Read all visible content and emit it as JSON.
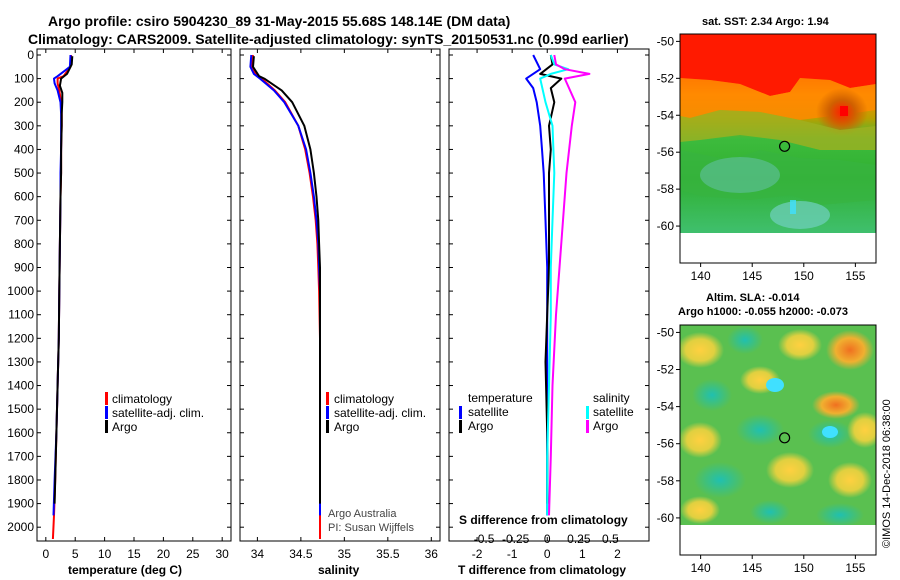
{
  "title": {
    "line1": "Argo profile: csiro 5904230_89 31-May-2015 55.68S 148.14E (DM data)",
    "line2": "Climatology: CARS2009. Satellite-adjusted climatology: synTS_20150531.nc (0.99d earlier)"
  },
  "colors": {
    "climatology": "#ff0000",
    "satellite": "#0000ff",
    "argo": "#000000",
    "s_satellite": "#00ffff",
    "s_argo": "#ff00ff"
  },
  "depth_axis": {
    "min": 0,
    "max": 2050,
    "ticks": [
      0,
      100,
      200,
      300,
      400,
      500,
      600,
      700,
      800,
      900,
      1000,
      1100,
      1200,
      1300,
      1400,
      1500,
      1600,
      1700,
      1800,
      1900,
      2000
    ]
  },
  "chart_data": [
    {
      "type": "line",
      "xlabel": "temperature (deg C)",
      "ylabel": "",
      "xlim": [
        -1.5,
        31.5
      ],
      "xticks": [
        "0",
        "5",
        "10",
        "15",
        "20",
        "25",
        "30"
      ],
      "xtick_values": [
        0,
        5,
        10,
        15,
        20,
        25,
        30
      ],
      "legend": {
        "position": "bottom-right",
        "items": [
          "climatology",
          "satellite-adj. clim.",
          "Argo"
        ]
      },
      "series": [
        {
          "name": "climatology",
          "color": "#ff0000",
          "depth": [
            0,
            50,
            90,
            100,
            120,
            150,
            200,
            250,
            300,
            400,
            500,
            600,
            800,
            1000,
            1200,
            1400,
            1600,
            1800,
            1950,
            2050
          ],
          "x": [
            4.3,
            4.2,
            3.0,
            2.0,
            2.0,
            2.3,
            2.6,
            2.7,
            2.7,
            2.6,
            2.6,
            2.5,
            2.4,
            2.3,
            2.2,
            2.0,
            1.8,
            1.6,
            1.4,
            1.2
          ]
        },
        {
          "name": "satellite-adj. clim.",
          "color": "#0000ff",
          "depth": [
            0,
            50,
            90,
            100,
            120,
            150,
            200,
            250,
            300,
            400,
            500,
            600,
            800,
            1000,
            1200,
            1400,
            1600,
            1800,
            1950
          ],
          "x": [
            4.2,
            4.1,
            2.0,
            1.4,
            1.5,
            2.0,
            2.5,
            2.6,
            2.6,
            2.6,
            2.5,
            2.5,
            2.4,
            2.3,
            2.2,
            2.0,
            1.8,
            1.5,
            1.3
          ]
        },
        {
          "name": "Argo",
          "color": "#000000",
          "depth": [
            5,
            40,
            80,
            100,
            130,
            160,
            200,
            250,
            300,
            400,
            500,
            600,
            800,
            1000,
            1200,
            1400,
            1600,
            1800,
            1900
          ],
          "x": [
            4.5,
            4.4,
            3.6,
            2.6,
            2.4,
            2.8,
            2.8,
            2.7,
            2.7,
            2.6,
            2.6,
            2.5,
            2.4,
            2.3,
            2.2,
            2.0,
            1.8,
            1.6,
            1.5
          ]
        }
      ]
    },
    {
      "type": "line",
      "xlabel": "salinity",
      "ylabel": "",
      "xlim": [
        33.8,
        36.1
      ],
      "xticks": [
        "34",
        "34.5",
        "35",
        "35.5",
        "36"
      ],
      "xtick_values": [
        34,
        34.5,
        35,
        35.5,
        36
      ],
      "legend": {
        "position": "bottom-right",
        "items": [
          "climatology",
          "satellite-adj. clim.",
          "Argo"
        ]
      },
      "credit": [
        "Argo Australia",
        "PI: Susan Wijffels"
      ],
      "series": [
        {
          "name": "climatology",
          "color": "#ff0000",
          "depth": [
            0,
            50,
            80,
            100,
            150,
            200,
            300,
            400,
            500,
            600,
            700,
            800,
            900,
            1000,
            1200,
            1500,
            1800,
            2050
          ],
          "x": [
            33.95,
            33.93,
            33.98,
            34.05,
            34.2,
            34.32,
            34.47,
            34.55,
            34.6,
            34.64,
            34.67,
            34.69,
            34.7,
            34.71,
            34.72,
            34.72,
            34.72,
            34.72
          ]
        },
        {
          "name": "satellite-adj. clim.",
          "color": "#0000ff",
          "depth": [
            0,
            50,
            80,
            100,
            150,
            200,
            300,
            400,
            500,
            600,
            700,
            800,
            900,
            1000,
            1200,
            1500,
            1800,
            1950
          ],
          "x": [
            33.93,
            33.92,
            33.96,
            34.03,
            34.19,
            34.31,
            34.47,
            34.56,
            34.61,
            34.65,
            34.68,
            34.7,
            34.71,
            34.72,
            34.72,
            34.72,
            34.72,
            34.72
          ]
        },
        {
          "name": "Argo",
          "color": "#000000",
          "depth": [
            5,
            50,
            90,
            100,
            150,
            200,
            300,
            400,
            500,
            600,
            700,
            800,
            900,
            1000,
            1200,
            1500,
            1800,
            1900
          ],
          "x": [
            33.96,
            33.95,
            34.02,
            34.08,
            34.28,
            34.4,
            34.54,
            34.61,
            34.65,
            34.68,
            34.7,
            34.71,
            34.72,
            34.72,
            34.72,
            34.72,
            34.72,
            34.72
          ]
        }
      ]
    },
    {
      "type": "line",
      "xlabel": "T difference from climatology",
      "xlabel2": "S difference from climatology",
      "ylabel": "",
      "xlim": [
        -2.8,
        2.9
      ],
      "xticks": [
        "-2",
        "-1",
        "0",
        "1",
        "2"
      ],
      "xtick_values": [
        -2,
        -1,
        0,
        1,
        2
      ],
      "xticks2": [
        "-0.5",
        "-0.25",
        "0",
        "0.25",
        "0.5"
      ],
      "xtick2_positions": [
        -1.8,
        -0.9,
        0,
        0.9,
        1.8
      ],
      "legend": {
        "position": "bottom",
        "temperature_header": "temperature",
        "salinity_header": "salinity",
        "items_t": [
          "satellite",
          "Argo"
        ],
        "items_s": [
          "satellite",
          "Argo"
        ]
      },
      "series": [
        {
          "name": "satellite",
          "quantity": "temperature",
          "color": "#0000ff",
          "depth": [
            0,
            60,
            100,
            140,
            200,
            300,
            400,
            500,
            700,
            900,
            1100,
            1400,
            1700,
            1950
          ],
          "x": [
            -0.4,
            -0.2,
            -0.6,
            -0.4,
            -0.3,
            -0.2,
            -0.15,
            -0.1,
            -0.05,
            0,
            0,
            0,
            0,
            0
          ]
        },
        {
          "name": "Argo",
          "quantity": "temperature",
          "color": "#000000",
          "depth": [
            0,
            40,
            80,
            100,
            140,
            200,
            300,
            400,
            500,
            700,
            900,
            1100,
            1300,
            1600,
            1900
          ],
          "x": [
            0.1,
            0.15,
            -0.2,
            0.4,
            0.1,
            0.2,
            0.05,
            0.1,
            0.05,
            0.05,
            0.05,
            0,
            -0.05,
            0,
            0
          ]
        },
        {
          "name": "satellite",
          "quantity": "salinity",
          "color": "#00ffff",
          "depth": [
            0,
            40,
            60,
            80,
            100,
            200,
            300,
            500,
            700,
            900,
            1100,
            1400,
            1700,
            1950
          ],
          "x": [
            0.1,
            0.2,
            0.6,
            0.1,
            -0.2,
            -0.05,
            0.15,
            0.2,
            0.15,
            0.1,
            0.1,
            0.05,
            0,
            0
          ]
        },
        {
          "name": "Argo",
          "quantity": "salinity",
          "color": "#ff00ff",
          "depth": [
            0,
            40,
            60,
            80,
            100,
            200,
            300,
            500,
            700,
            900,
            1100,
            1400,
            1700,
            1950
          ],
          "x": [
            0.2,
            0.25,
            0.5,
            1.2,
            0.5,
            0.8,
            0.7,
            0.55,
            0.45,
            0.35,
            0.25,
            0.15,
            0.1,
            0.05
          ]
        }
      ]
    }
  ],
  "maps": [
    {
      "title": "sat. SST: 2.34 Argo: 1.94",
      "title2": "",
      "lon_ticks": [
        "140",
        "145",
        "150",
        "155"
      ],
      "lon_values": [
        140,
        145,
        150,
        155
      ],
      "lat_ticks": [
        "-50",
        "-52",
        "-54",
        "-56",
        "-58",
        "-60"
      ],
      "lat_values": [
        -50,
        -52,
        -54,
        -56,
        -58,
        -60
      ],
      "lon_range": [
        138,
        157
      ],
      "lat_range": [
        -49.6,
        -62.0
      ],
      "data_lat_bottom": -60,
      "argo_position": {
        "lon": 148.14,
        "lat": -55.68
      }
    },
    {
      "title": "Altim. SLA: -0.014",
      "title2": "Argo h1000: -0.055 h2000: -0.073",
      "lon_ticks": [
        "140",
        "145",
        "150",
        "155"
      ],
      "lon_values": [
        140,
        145,
        150,
        155
      ],
      "lat_ticks": [
        "-50",
        "-52",
        "-54",
        "-56",
        "-58",
        "-60"
      ],
      "lat_values": [
        -50,
        -52,
        -54,
        -56,
        -58,
        -60
      ],
      "lon_range": [
        138,
        157
      ],
      "lat_range": [
        -49.6,
        -62.0
      ],
      "data_lat_bottom": -60,
      "argo_position": {
        "lon": 148.14,
        "lat": -55.68
      }
    }
  ],
  "watermark": "©IMOS 14-Dec-2018 06:38:00"
}
